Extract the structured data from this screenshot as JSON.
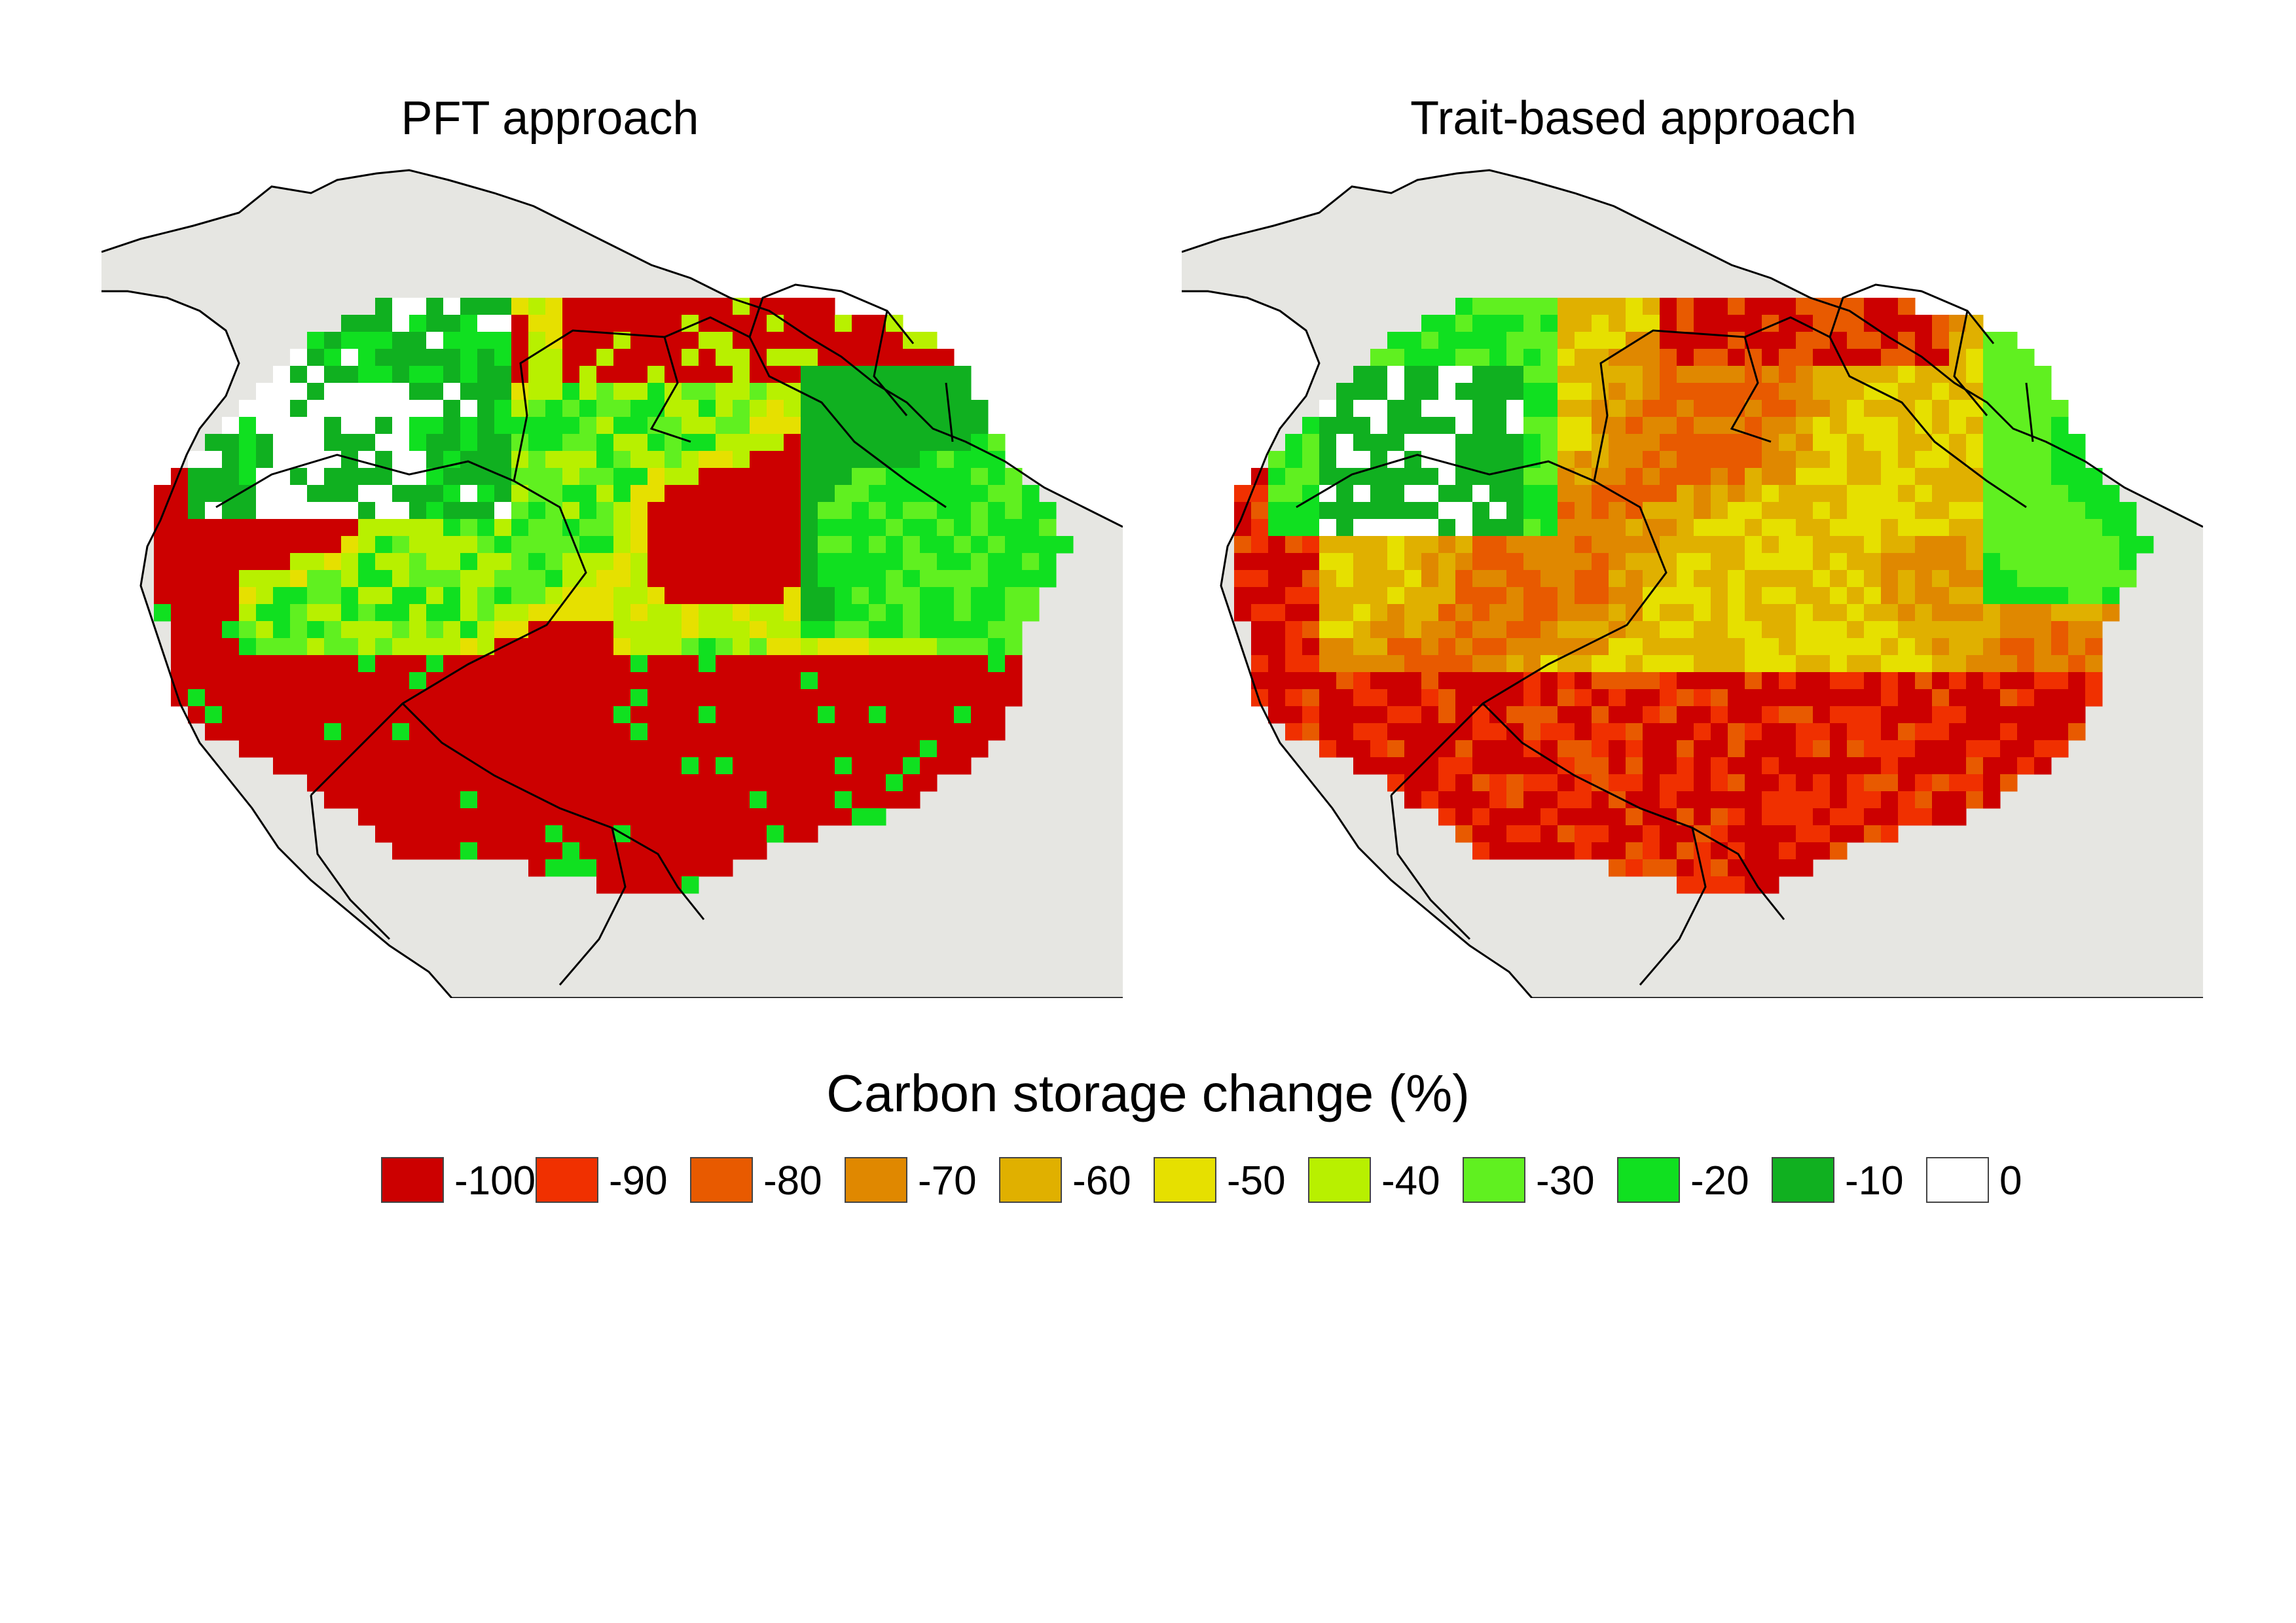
{
  "panels": [
    {
      "id": "pft",
      "title": "PFT approach",
      "dominant_change": -100
    },
    {
      "id": "trait",
      "title": "Trait-based approach",
      "dominant_change": -60
    }
  ],
  "legend": {
    "title": "Carbon storage change (%)",
    "items": [
      {
        "label": "-100",
        "value": -100,
        "color": "#cc0000"
      },
      {
        "label": "-90",
        "value": -90,
        "color": "#f03000"
      },
      {
        "label": "-80",
        "value": -80,
        "color": "#e85a00"
      },
      {
        "label": "-70",
        "value": -70,
        "color": "#e08800"
      },
      {
        "label": "-60",
        "value": -60,
        "color": "#e0b000"
      },
      {
        "label": "-50",
        "value": -50,
        "color": "#e6e000"
      },
      {
        "label": "-40",
        "value": -40,
        "color": "#b8f000"
      },
      {
        "label": "-30",
        "value": -30,
        "color": "#60f020"
      },
      {
        "label": "-20",
        "value": -20,
        "color": "#10e020"
      },
      {
        "label": "-10",
        "value": -10,
        "color": "#10b020"
      },
      {
        "label": "0",
        "value": 0,
        "color": "#ffffff"
      }
    ]
  },
  "colors": {
    "land": "#e6e6e2",
    "border": "#000000",
    "sea": "#ffffff"
  }
}
